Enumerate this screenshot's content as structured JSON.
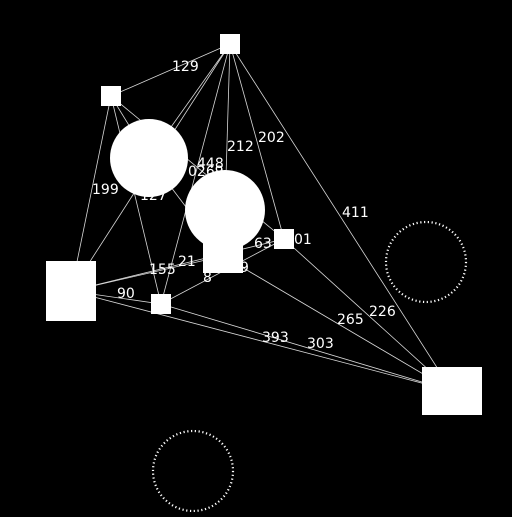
{
  "colors": {
    "background": "#000000",
    "shape": "#ffffff",
    "edge": "#d8d8d8"
  },
  "nodes": [
    {
      "id": "A",
      "kind": "square"
    },
    {
      "id": "B",
      "kind": "square"
    },
    {
      "id": "C",
      "kind": "circle"
    },
    {
      "id": "D",
      "kind": "circle"
    },
    {
      "id": "E",
      "kind": "square"
    },
    {
      "id": "F",
      "kind": "square"
    },
    {
      "id": "G",
      "kind": "square"
    },
    {
      "id": "H",
      "kind": "square"
    },
    {
      "id": "I",
      "kind": "square"
    },
    {
      "id": "J",
      "kind": "ring"
    },
    {
      "id": "K",
      "kind": "ring"
    }
  ],
  "edges": [
    {
      "from": "A",
      "to": "B",
      "label": "129"
    },
    {
      "from": "A",
      "to": "C",
      "label": ""
    },
    {
      "from": "A",
      "to": "D",
      "label": ""
    },
    {
      "from": "A",
      "to": "G",
      "label": ""
    },
    {
      "from": "A",
      "to": "H",
      "label": ""
    },
    {
      "from": "A",
      "to": "F",
      "label": ""
    },
    {
      "from": "A",
      "to": "I",
      "label": "411"
    },
    {
      "from": "B",
      "to": "C",
      "label": ""
    },
    {
      "from": "B",
      "to": "F",
      "label": ""
    },
    {
      "from": "B",
      "to": "G",
      "label": ""
    },
    {
      "from": "B",
      "to": "H",
      "label": ""
    },
    {
      "from": "G",
      "to": "E",
      "label": ""
    },
    {
      "from": "G",
      "to": "F",
      "label": ""
    },
    {
      "from": "G",
      "to": "H",
      "label": ""
    },
    {
      "from": "G",
      "to": "I",
      "label": "393"
    },
    {
      "from": "H",
      "to": "F",
      "label": ""
    },
    {
      "from": "H",
      "to": "I",
      "label": "303"
    },
    {
      "from": "E",
      "to": "I",
      "label": ""
    },
    {
      "from": "F",
      "to": "I",
      "label": ""
    },
    {
      "from": "C",
      "to": "E",
      "label": ""
    }
  ],
  "labels": [
    "129",
    "202",
    "212",
    "448",
    "0269",
    "199",
    "127",
    "411",
    "63",
    "01",
    "21",
    "155",
    "9",
    "8",
    "90",
    "265",
    "226",
    "393",
    "303"
  ]
}
